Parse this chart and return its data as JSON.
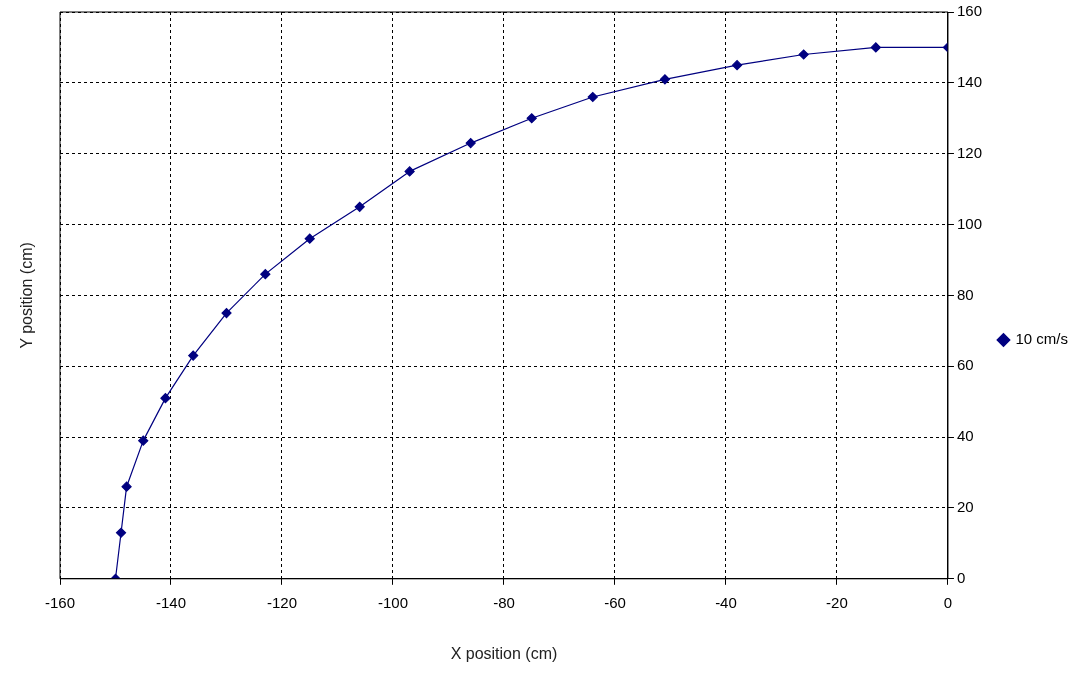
{
  "chart_data": {
    "type": "line",
    "xlabel": "X position (cm)",
    "ylabel": "Y position (cm)",
    "x": [
      -150,
      -149,
      -148,
      -145,
      -141,
      -136,
      -130,
      -123,
      -115,
      -106,
      -97,
      -86,
      -75,
      -64,
      -51,
      -38,
      -26,
      -13,
      0
    ],
    "series": [
      {
        "name": "10 cm/s",
        "color": "#000080",
        "values": [
          0,
          13,
          26,
          39,
          51,
          63,
          75,
          86,
          96,
          105,
          115,
          123,
          130,
          136,
          141,
          145,
          148,
          150,
          150
        ]
      }
    ],
    "xlim": [
      -160,
      0
    ],
    "xticks": [
      -160,
      -140,
      -120,
      -100,
      -80,
      -60,
      -40,
      -20,
      0
    ],
    "ylim": [
      0,
      160
    ],
    "yticks": [
      0,
      20,
      40,
      60,
      80,
      100,
      120,
      140,
      160
    ],
    "grid": true,
    "legend": "right",
    "marker": "diamond",
    "line_style": "solid"
  }
}
